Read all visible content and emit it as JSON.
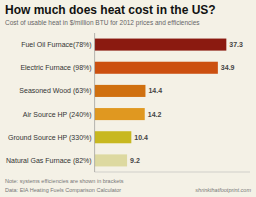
{
  "chart_data": {
    "type": "bar",
    "orientation": "horizontal",
    "title": "How much does heat cost in the US?",
    "subtitle": "Cost of usable heat in $/million BTU for 2012 prices and efficiencies",
    "annotations": [
      "Note: systems efficiencies are shown in brackets",
      "Data: EIA Heating Fuels Comparison Calculator",
      "shrinkthatfootprint.com"
    ],
    "categories": [
      "Natural Gas Furnace (82%)",
      "Ground Source HP (330%)",
      "Air Source HP (240%)",
      "Seasoned Wood (63%)",
      "Electric Furnace (98%)",
      "Fuel Oil Furnace(78%)"
    ],
    "values": [
      9.2,
      10.4,
      14.2,
      14.4,
      34.9,
      37.3
    ],
    "colors": [
      "#ddd9a0",
      "#c8b820",
      "#e09820",
      "#d07010",
      "#cc5010",
      "#8b1a10"
    ],
    "xlim": [
      0,
      44
    ],
    "tick_labels": "y",
    "data_labels": true
  }
}
